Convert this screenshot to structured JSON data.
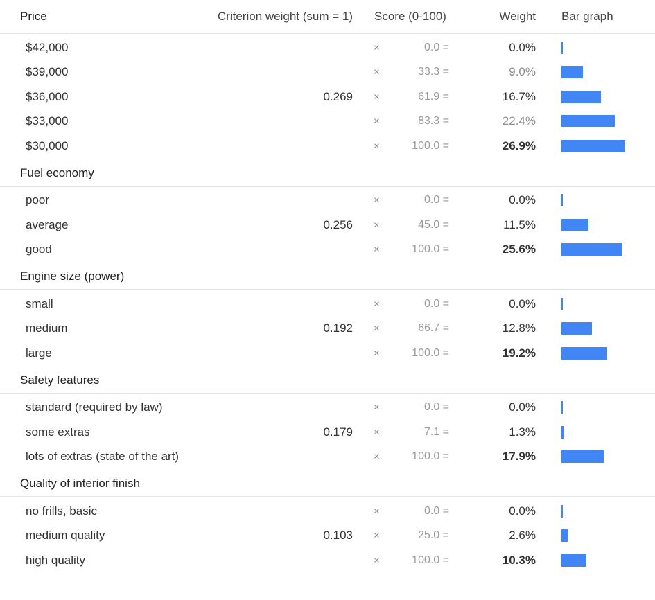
{
  "headers": {
    "criterion": "Price",
    "criterion_weight": "Criterion weight (sum = 1)",
    "score": "Score (0-100)",
    "weight": "Weight",
    "bar_graph": "Bar graph"
  },
  "bar_color": "#4285f4",
  "times_symbol": "×",
  "max_weight_pct": 26.9,
  "groups": [
    {
      "name": "Price",
      "criterion_weight": "0.269",
      "levels": [
        {
          "label": "$42,000",
          "score": "0.0 =",
          "weight": "0.0%",
          "weight_value": 0.0,
          "style": "normal"
        },
        {
          "label": "$39,000",
          "score": "33.3 =",
          "weight": "9.0%",
          "weight_value": 9.0,
          "style": "light"
        },
        {
          "label": "$36,000",
          "score": "61.9 =",
          "weight": "16.7%",
          "weight_value": 16.7,
          "style": "normal"
        },
        {
          "label": "$33,000",
          "score": "83.3 =",
          "weight": "22.4%",
          "weight_value": 22.4,
          "style": "light"
        },
        {
          "label": "$30,000",
          "score": "100.0 =",
          "weight": "26.9%",
          "weight_value": 26.9,
          "style": "bold"
        }
      ]
    },
    {
      "name": "Fuel economy",
      "criterion_weight": "0.256",
      "levels": [
        {
          "label": "poor",
          "score": "0.0 =",
          "weight": "0.0%",
          "weight_value": 0.0,
          "style": "normal"
        },
        {
          "label": "average",
          "score": "45.0 =",
          "weight": "11.5%",
          "weight_value": 11.5,
          "style": "normal"
        },
        {
          "label": "good",
          "score": "100.0 =",
          "weight": "25.6%",
          "weight_value": 25.6,
          "style": "bold"
        }
      ]
    },
    {
      "name": "Engine size (power)",
      "criterion_weight": "0.192",
      "levels": [
        {
          "label": "small",
          "score": "0.0 =",
          "weight": "0.0%",
          "weight_value": 0.0,
          "style": "normal"
        },
        {
          "label": "medium",
          "score": "66.7 =",
          "weight": "12.8%",
          "weight_value": 12.8,
          "style": "normal"
        },
        {
          "label": "large",
          "score": "100.0 =",
          "weight": "19.2%",
          "weight_value": 19.2,
          "style": "bold"
        }
      ]
    },
    {
      "name": "Safety features",
      "criterion_weight": "0.179",
      "levels": [
        {
          "label": "standard (required by law)",
          "score": "0.0 =",
          "weight": "0.0%",
          "weight_value": 0.0,
          "style": "normal"
        },
        {
          "label": "some extras",
          "score": "7.1 =",
          "weight": "1.3%",
          "weight_value": 1.3,
          "style": "normal"
        },
        {
          "label": "lots of extras (state of the art)",
          "score": "100.0 =",
          "weight": "17.9%",
          "weight_value": 17.9,
          "style": "bold"
        }
      ]
    },
    {
      "name": "Quality of interior finish",
      "criterion_weight": "0.103",
      "levels": [
        {
          "label": "no frills, basic",
          "score": "0.0 =",
          "weight": "0.0%",
          "weight_value": 0.0,
          "style": "normal"
        },
        {
          "label": "medium quality",
          "score": "25.0 =",
          "weight": "2.6%",
          "weight_value": 2.6,
          "style": "normal"
        },
        {
          "label": "high quality",
          "score": "100.0 =",
          "weight": "10.3%",
          "weight_value": 10.3,
          "style": "bold"
        }
      ]
    }
  ]
}
